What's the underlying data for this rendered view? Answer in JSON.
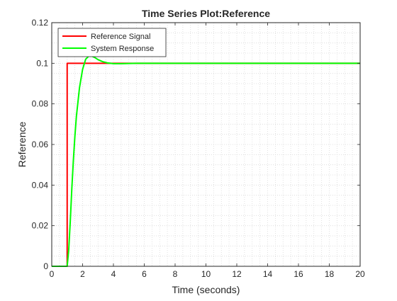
{
  "chart_data": {
    "type": "line",
    "title": "Time Series Plot:Reference",
    "xlabel": "Time (seconds)",
    "ylabel": "Reference",
    "xlim": [
      0,
      20
    ],
    "ylim": [
      0,
      0.12
    ],
    "xticks": [
      0,
      2,
      4,
      6,
      8,
      10,
      12,
      14,
      16,
      18,
      20
    ],
    "xtick_labels": [
      "0",
      "2",
      "4",
      "6",
      "8",
      "10",
      "12",
      "14",
      "16",
      "18",
      "20"
    ],
    "yticks": [
      0,
      0.02,
      0.04,
      0.06,
      0.08,
      0.1,
      0.12
    ],
    "ytick_labels": [
      "0",
      "0.02",
      "0.04",
      "0.06",
      "0.08",
      "0.1",
      "0.12"
    ],
    "grid": "minor dotted",
    "legend_position": "top-left",
    "series": [
      {
        "name": "Reference Signal",
        "color": "#ff0000",
        "x": [
          0,
          1.0,
          1.0,
          20
        ],
        "y": [
          0,
          0,
          0.1,
          0.1
        ]
      },
      {
        "name": "System Response",
        "color": "#00ff00",
        "x": [
          0,
          1.0,
          1.1,
          1.2,
          1.3,
          1.4,
          1.5,
          1.6,
          1.8,
          2.0,
          2.2,
          2.4,
          2.6,
          2.8,
          3.0,
          3.3,
          3.6,
          4.0,
          4.5,
          5.0,
          5.5,
          6.0,
          7.0,
          8.0,
          20
        ],
        "y": [
          0,
          0,
          0.008,
          0.022,
          0.038,
          0.052,
          0.064,
          0.074,
          0.088,
          0.097,
          0.102,
          0.1035,
          0.1035,
          0.1028,
          0.1018,
          0.1008,
          0.1002,
          0.0998,
          0.0998,
          0.0999,
          0.1,
          0.1,
          0.1,
          0.1,
          0.1
        ]
      }
    ]
  }
}
